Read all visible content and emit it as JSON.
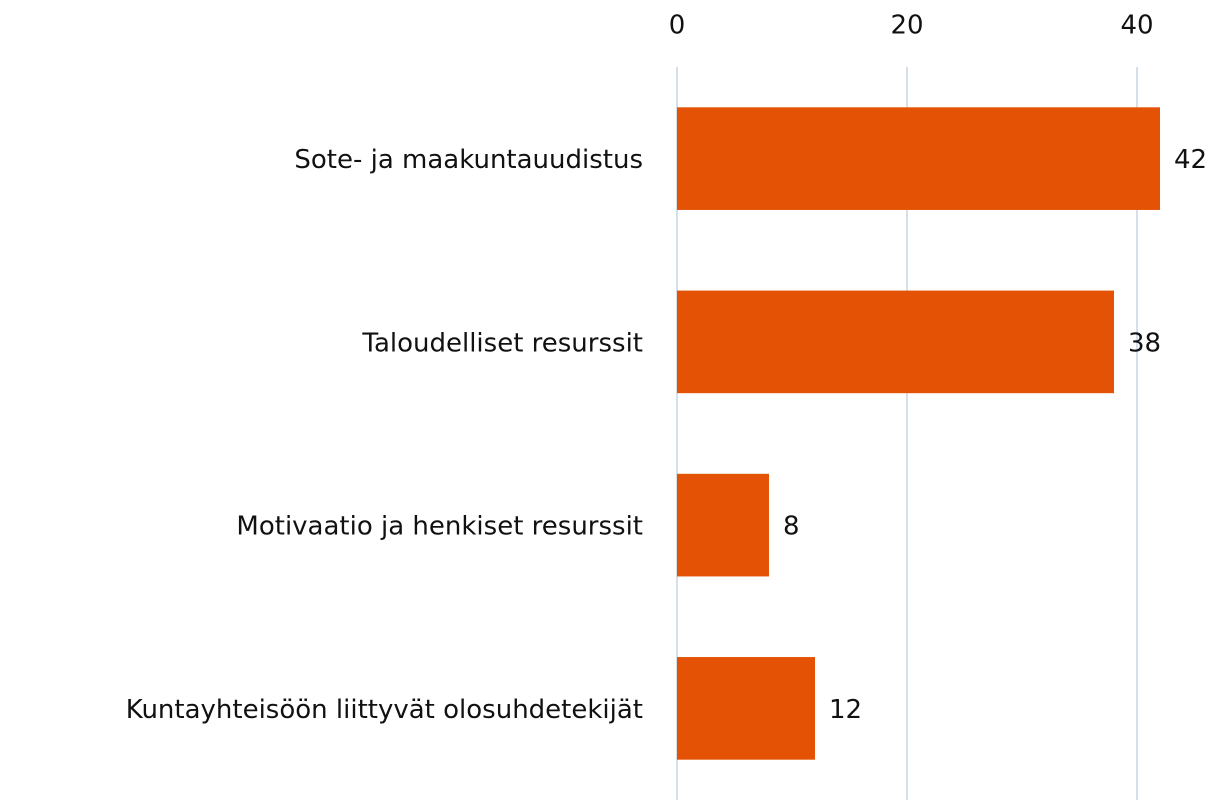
{
  "chart_data": {
    "type": "hbar",
    "categories": [
      "Sote- ja maakuntauudistus",
      "Taloudelliset resurssit",
      "Motivaatio ja henkiset resurssit",
      "Kuntayhteisöön liittyvät olosuhdetekijät"
    ],
    "values": [
      42,
      38,
      8,
      12
    ],
    "color": "#e35205",
    "xlim": [
      0,
      47
    ],
    "xticks": [
      0,
      20,
      40
    ],
    "grid": true
  }
}
